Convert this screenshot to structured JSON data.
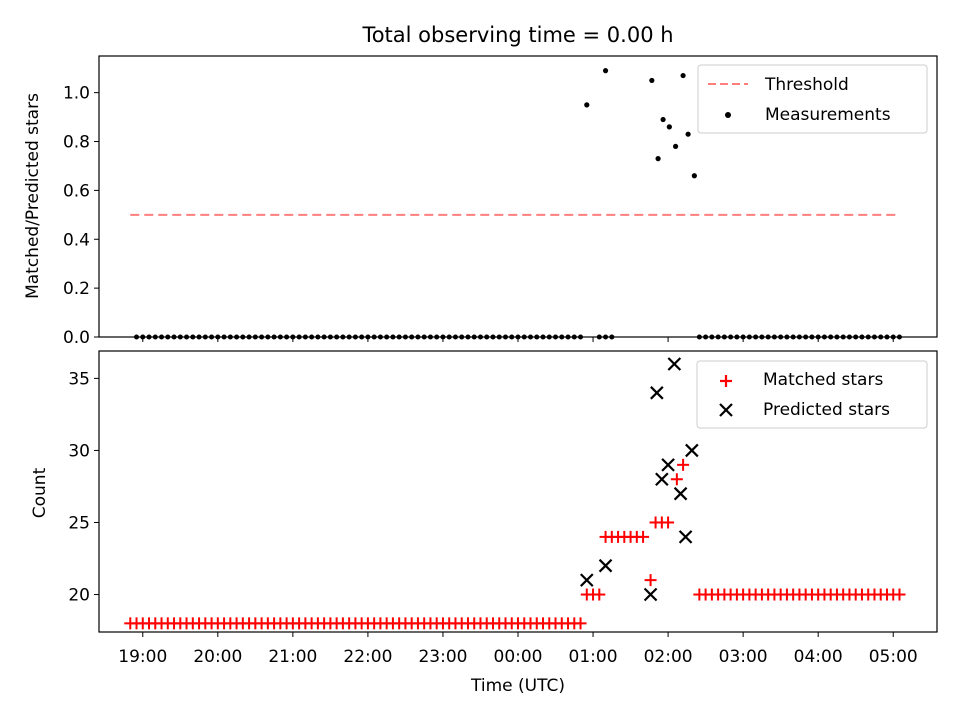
{
  "chart_data": [
    {
      "type": "scatter",
      "title": "Total observing time = 0.00 h",
      "ylabel": "Matched/Predicted stars",
      "ylim": [
        0,
        1.15
      ],
      "yticks": [
        "0.0",
        "0.2",
        "0.4",
        "0.6",
        "0.8",
        "1.0"
      ],
      "threshold": {
        "name": "Threshold",
        "value": 0.5,
        "x_range": [
          "18:50",
          "05:05"
        ],
        "color": "#ff7f7f",
        "style": "dashed"
      },
      "series": [
        {
          "name": "Measurements",
          "color": "#000000",
          "marker": "dot",
          "x": [
            "00:55",
            "01:10",
            "01:47",
            "01:52",
            "01:56",
            "02:01",
            "02:06",
            "02:12",
            "02:16",
            "02:21"
          ],
          "y": [
            0.95,
            1.09,
            1.05,
            0.73,
            0.89,
            0.86,
            0.78,
            1.07,
            0.83,
            0.66
          ]
        }
      ],
      "zero_span_start": "18:55",
      "zero_span_end": "05:05",
      "zero_gaps": [
        [
          "00:55",
          "01:00"
        ],
        [
          "01:20",
          "02:23"
        ]
      ],
      "legend_position": "upper right",
      "grid": false
    },
    {
      "type": "scatter",
      "ylabel": "Count",
      "xlabel": "Time (UTC)",
      "ylim": [
        17.4,
        36.9
      ],
      "yticks": [
        "20",
        "25",
        "30",
        "35"
      ],
      "xticks": [
        "19:00",
        "20:00",
        "21:00",
        "22:00",
        "23:00",
        "00:00",
        "01:00",
        "02:00",
        "03:00",
        "04:00",
        "05:00"
      ],
      "series": [
        {
          "name": "Matched stars",
          "color": "#ff0000",
          "marker": "plus",
          "segments": [
            {
              "start": "18:50",
              "end": "00:50",
              "value": 18
            },
            {
              "start": "00:55",
              "end": "01:05",
              "value": 20
            },
            {
              "start": "01:10",
              "end": "01:40",
              "value": 24
            },
            {
              "start": "01:50",
              "end": "02:00",
              "value": 25
            },
            {
              "start": "02:25",
              "end": "05:05",
              "value": 20
            }
          ],
          "x": [
            "01:46",
            "02:07",
            "02:12"
          ],
          "y": [
            21,
            28,
            29
          ]
        },
        {
          "name": "Predicted stars",
          "color": "#000000",
          "marker": "x",
          "x": [
            "00:55",
            "01:10",
            "01:46",
            "01:51",
            "01:55",
            "02:00",
            "02:05",
            "02:10",
            "02:14",
            "02:19"
          ],
          "y": [
            21,
            22,
            20,
            34,
            28,
            29,
            36,
            27,
            24,
            30
          ]
        }
      ],
      "legend_position": "upper right",
      "grid": false
    }
  ]
}
